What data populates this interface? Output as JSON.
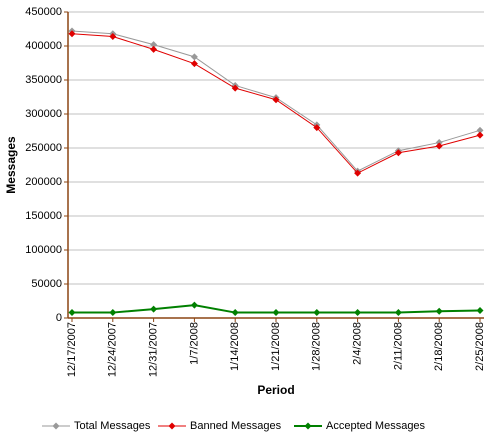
{
  "chart_data": {
    "type": "line",
    "x_label": "Period",
    "y_label": "Messages",
    "categories": [
      "12/17/2007",
      "12/24/2007",
      "12/31/2007",
      "1/7/2008",
      "1/14/2008",
      "1/21/2008",
      "1/28/2008",
      "2/4/2008",
      "2/11/2008",
      "2/18/2008",
      "2/25/2008"
    ],
    "series": [
      {
        "name": "Total Messages",
        "color": "#999999",
        "values": [
          422000,
          418000,
          402000,
          384000,
          342000,
          324000,
          284000,
          216000,
          246000,
          258000,
          276000
        ]
      },
      {
        "name": "Banned Messages",
        "color": "#e00000",
        "values": [
          418000,
          414000,
          395000,
          374000,
          338000,
          321000,
          280000,
          213000,
          243000,
          253000,
          269000
        ]
      },
      {
        "name": "Accepted Messages",
        "color": "#008000",
        "values": [
          8000,
          8000,
          13000,
          19000,
          8000,
          8000,
          8000,
          8000,
          8000,
          10000,
          11000
        ]
      }
    ],
    "ylim": [
      0,
      450000
    ],
    "yticks": [
      0,
      50000,
      100000,
      150000,
      200000,
      250000,
      300000,
      350000,
      400000,
      450000
    ],
    "grid": true,
    "legend": "bottom"
  }
}
